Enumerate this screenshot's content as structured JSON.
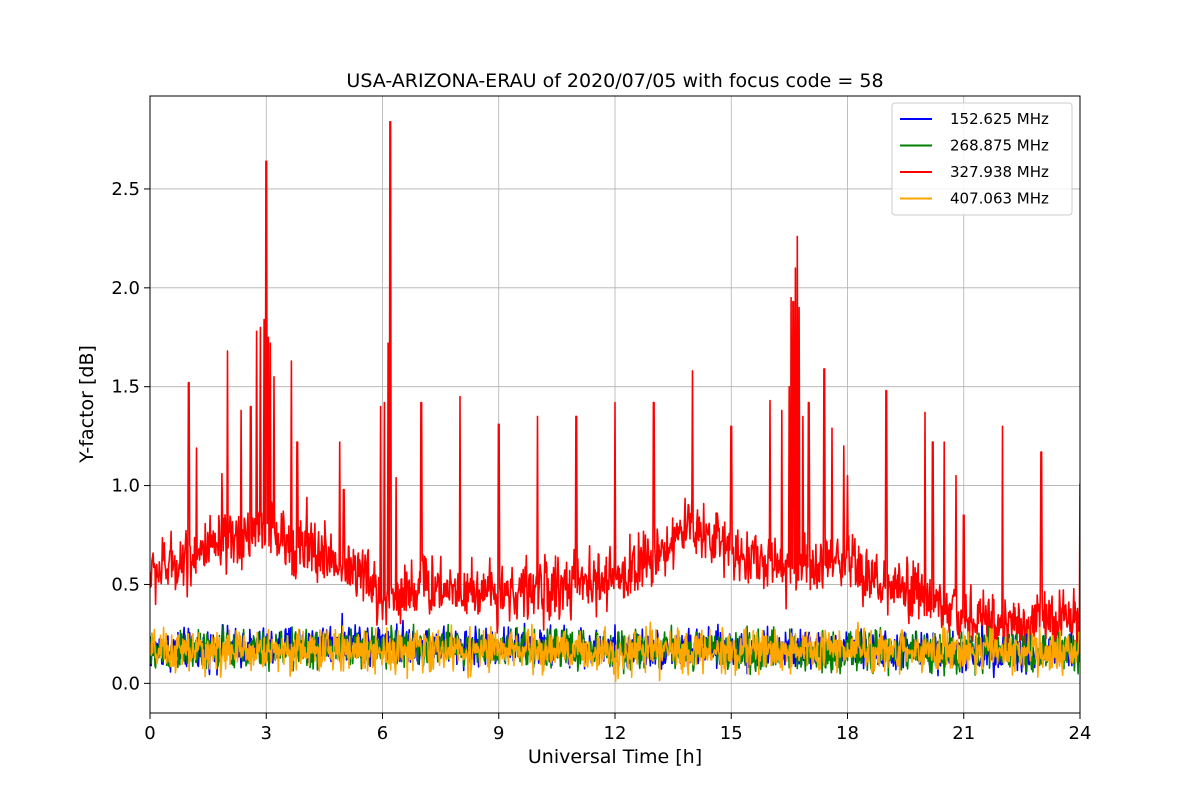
{
  "chart_data": {
    "type": "line",
    "title": "USA-ARIZONA-ERAU of 2020/07/05 with focus code = 58",
    "xlabel": "Universal Time [h]",
    "ylabel": "Y-factor [dB]",
    "xlim": [
      0,
      24
    ],
    "ylim": [
      -0.15,
      2.97
    ],
    "xticks": [
      0,
      3,
      6,
      9,
      12,
      15,
      18,
      21,
      24
    ],
    "xtick_labels": [
      "0",
      "3",
      "6",
      "9",
      "12",
      "15",
      "18",
      "21",
      "24"
    ],
    "yticks": [
      0.0,
      0.5,
      1.0,
      1.5,
      2.0,
      2.5
    ],
    "ytick_labels": [
      "0.0",
      "0.5",
      "1.0",
      "1.5",
      "2.0",
      "2.5"
    ],
    "grid": true,
    "legend_position": "top-right",
    "series": [
      {
        "name": "152.625 MHz",
        "color": "#0000ff",
        "baseline": [
          [
            0,
            0.17
          ],
          [
            3,
            0.18
          ],
          [
            4,
            0.2
          ],
          [
            5,
            0.21
          ],
          [
            6,
            0.22
          ],
          [
            7,
            0.2
          ],
          [
            9,
            0.19
          ],
          [
            12,
            0.18
          ],
          [
            15,
            0.17
          ],
          [
            18,
            0.17
          ],
          [
            21,
            0.16
          ],
          [
            24,
            0.16
          ]
        ],
        "noise": 0.07,
        "spikes": []
      },
      {
        "name": "268.875 MHz",
        "color": "#008000",
        "baseline": [
          [
            0,
            0.16
          ],
          [
            6,
            0.18
          ],
          [
            12,
            0.17
          ],
          [
            18,
            0.16
          ],
          [
            24,
            0.16
          ]
        ],
        "noise": 0.07,
        "spikes": []
      },
      {
        "name": "327.938 MHz",
        "color": "#ff0000",
        "baseline": [
          [
            0,
            0.55
          ],
          [
            1,
            0.64
          ],
          [
            2,
            0.7
          ],
          [
            3,
            0.8
          ],
          [
            3.5,
            0.7
          ],
          [
            4.5,
            0.65
          ],
          [
            5.5,
            0.55
          ],
          [
            6,
            0.42
          ],
          [
            7,
            0.5
          ],
          [
            9,
            0.46
          ],
          [
            10,
            0.47
          ],
          [
            12,
            0.52
          ],
          [
            13,
            0.65
          ],
          [
            14,
            0.8
          ],
          [
            15,
            0.68
          ],
          [
            16,
            0.6
          ],
          [
            17,
            0.58
          ],
          [
            18,
            0.6
          ],
          [
            19,
            0.48
          ],
          [
            20,
            0.44
          ],
          [
            21,
            0.33
          ],
          [
            22,
            0.3
          ],
          [
            24,
            0.33
          ]
        ],
        "noise": 0.11,
        "spikes": [
          [
            1.0,
            1.52
          ],
          [
            1.2,
            1.19
          ],
          [
            1.85,
            1.06
          ],
          [
            2.0,
            1.68
          ],
          [
            2.35,
            1.38
          ],
          [
            2.6,
            1.4
          ],
          [
            2.75,
            1.78
          ],
          [
            2.85,
            1.8
          ],
          [
            2.95,
            1.84
          ],
          [
            3.0,
            2.64
          ],
          [
            3.05,
            1.75
          ],
          [
            3.1,
            1.72
          ],
          [
            3.2,
            1.55
          ],
          [
            3.65,
            1.63
          ],
          [
            3.8,
            1.22
          ],
          [
            4.05,
            0.94
          ],
          [
            4.9,
            1.22
          ],
          [
            5.0,
            0.98
          ],
          [
            5.95,
            1.4
          ],
          [
            6.05,
            1.42
          ],
          [
            6.15,
            1.72
          ],
          [
            6.2,
            2.84
          ],
          [
            6.35,
            1.04
          ],
          [
            7.0,
            1.42
          ],
          [
            8.0,
            1.45
          ],
          [
            9.0,
            1.31
          ],
          [
            10.0,
            1.35
          ],
          [
            11.0,
            1.35
          ],
          [
            12.0,
            1.42
          ],
          [
            13.0,
            1.42
          ],
          [
            14.0,
            1.58
          ],
          [
            15.0,
            1.3
          ],
          [
            16.0,
            1.43
          ],
          [
            16.3,
            1.38
          ],
          [
            16.5,
            1.5
          ],
          [
            16.55,
            1.95
          ],
          [
            16.6,
            1.93
          ],
          [
            16.65,
            2.1
          ],
          [
            16.7,
            2.26
          ],
          [
            16.75,
            1.9
          ],
          [
            16.85,
            1.35
          ],
          [
            17.0,
            1.42
          ],
          [
            17.4,
            1.59
          ],
          [
            17.6,
            1.29
          ],
          [
            17.9,
            1.2
          ],
          [
            18.0,
            1.05
          ],
          [
            19.0,
            1.48
          ],
          [
            20.0,
            1.37
          ],
          [
            20.2,
            1.22
          ],
          [
            20.5,
            1.22
          ],
          [
            20.8,
            1.05
          ],
          [
            21.0,
            0.85
          ],
          [
            22.0,
            1.3
          ],
          [
            23.0,
            1.17
          ],
          [
            24.0,
            1.01
          ]
        ]
      },
      {
        "name": "407.063 MHz",
        "color": "#ffa500",
        "baseline": [
          [
            0,
            0.16
          ],
          [
            6,
            0.17
          ],
          [
            12,
            0.16
          ],
          [
            18,
            0.17
          ],
          [
            24,
            0.16
          ]
        ],
        "noise": 0.075,
        "spikes": []
      }
    ]
  }
}
